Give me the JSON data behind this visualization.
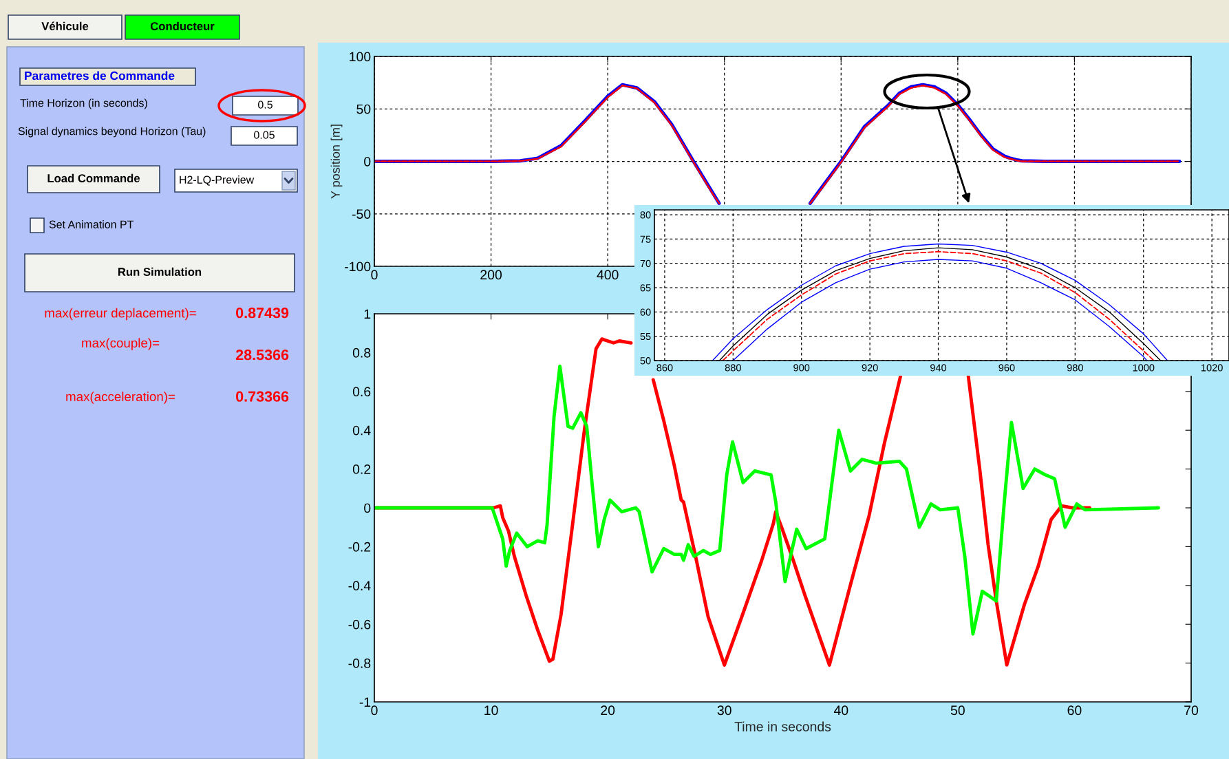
{
  "chart_data": [
    {
      "type": "other",
      "annotations": [
        "Véhicule",
        "Conducteur",
        "Parametres de Commande",
        "Time Horizon (in seconds)",
        "0.5",
        "Signal dynamics beyond Horizon (Tau)",
        "0.05",
        "Load Commande",
        "H2-LQ-Preview",
        "Set Animation PT",
        "Run Simulation",
        "max(erreur deplacement)=",
        "0.87439",
        "max(couple)=",
        "28.5366",
        "max(acceleration)=",
        "0.73366"
      ]
    },
    {
      "type": "line",
      "ylabel": "Y position [m]",
      "xlim": [
        0,
        1400
      ],
      "xticks": [
        0,
        200,
        400,
        {
          "value": 600,
          "label": null
        },
        {
          "value": 800,
          "label": null
        },
        {
          "value": 1000,
          "label": null
        },
        {
          "value": 1200,
          "label": null
        },
        {
          "value": 1400,
          "label": null
        }
      ],
      "ylim": [
        -100,
        100
      ],
      "yticks": [
        -100,
        -50,
        0,
        50,
        100
      ],
      "grid": true,
      "x": [
        0,
        100,
        200,
        250,
        280,
        320,
        360,
        400,
        425,
        450,
        480,
        510,
        547,
        580,
        591,
        673,
        747,
        760,
        800,
        840,
        880,
        900,
        920,
        940,
        960,
        980,
        1000,
        1020,
        1040,
        1060,
        1080,
        1090,
        1100,
        1110,
        1150,
        1250,
        1380
      ],
      "series": [
        {
          "color": "#0000ff",
          "values": [
            0,
            0,
            0,
            0.5,
            3,
            15,
            38,
            62,
            73,
            70,
            57,
            35,
            0,
            -30,
            -40,
            null,
            -40,
            -30,
            0,
            33,
            53,
            65,
            71,
            73,
            71,
            65,
            54,
            40,
            25,
            12,
            5,
            3,
            1.5,
            0.5,
            0,
            0,
            0
          ]
        },
        {
          "color": "#ff0000",
          "line_style": "dashed",
          "values": [
            0,
            0,
            0,
            0.3,
            2.5,
            14,
            37,
            61,
            72.3,
            69.5,
            56,
            34,
            -0.8,
            -31,
            -40,
            null,
            -40,
            -31,
            -0.8,
            32,
            52,
            64,
            70,
            72.3,
            70,
            64,
            53,
            39,
            24,
            11,
            4,
            2.5,
            1,
            0,
            0,
            0,
            0
          ]
        }
      ]
    },
    {
      "type": "line",
      "xlim": [
        857,
        1025
      ],
      "xticks": [
        860,
        880,
        900,
        920,
        940,
        960,
        980,
        1000,
        1020
      ],
      "ylim": [
        50,
        81
      ],
      "yticks": [
        50,
        55,
        60,
        65,
        70,
        75,
        80
      ],
      "grid": true,
      "series": [
        {
          "color": "#0000ff",
          "x": [
            874,
            880,
            890,
            900,
            910,
            920,
            930,
            940,
            950,
            960,
            970,
            980,
            990,
            1000,
            1007
          ],
          "values": [
            50,
            54.5,
            60.5,
            65.5,
            69.5,
            72,
            73.5,
            74,
            73.7,
            72.3,
            70,
            66.5,
            61.5,
            55.5,
            50
          ]
        },
        {
          "color": "#000000",
          "x": [
            876,
            880,
            890,
            900,
            910,
            920,
            930,
            940,
            950,
            960,
            970,
            980,
            990,
            1000,
            1005
          ],
          "values": [
            50,
            53,
            59.5,
            64.5,
            68.5,
            71,
            72.6,
            73.2,
            72.8,
            71.3,
            68.8,
            65,
            60,
            53.5,
            50
          ]
        },
        {
          "color": "#ff0000",
          "line_style": "dashed",
          "x": [
            877,
            880,
            890,
            900,
            910,
            920,
            930,
            940,
            950,
            960,
            970,
            980,
            990,
            1000,
            1003
          ],
          "values": [
            50,
            52,
            58.5,
            63.5,
            67.8,
            70.5,
            72,
            72.4,
            72,
            70.5,
            68,
            64,
            58.5,
            52,
            50
          ]
        },
        {
          "color": "#0000ff",
          "x": [
            880,
            890,
            900,
            910,
            920,
            930,
            940,
            950,
            960,
            970,
            980,
            990,
            1000,
            1001
          ],
          "values": [
            50,
            56.5,
            62,
            66,
            68.8,
            70.3,
            70.8,
            70.5,
            69,
            66,
            62.5,
            57,
            50.8,
            50
          ]
        }
      ]
    },
    {
      "type": "line",
      "xlabel": "Time in seconds",
      "xlim": [
        0,
        70
      ],
      "xticks": [
        0,
        10,
        20,
        30,
        40,
        50,
        60,
        70
      ],
      "ylim": [
        -1,
        1
      ],
      "yticks": [
        -1,
        -0.8,
        -0.6,
        -0.4,
        -0.2,
        0,
        0.2,
        0.4,
        0.6,
        0.8,
        1
      ],
      "grid": false,
      "series": [
        {
          "color": "#ff0000",
          "x": [
            0,
            10.2,
            10.8,
            11,
            11.5,
            12,
            13,
            14,
            15,
            15.3,
            16,
            17,
            18,
            19,
            19.5,
            20,
            20.5,
            21,
            22,
            23,
            23.9,
            24.8,
            25.7,
            26.3,
            26.5,
            27.6,
            28.6,
            30,
            31.5,
            33.2,
            34.2,
            34.4,
            34.9,
            35.9,
            36.9,
            39,
            40.7,
            42.4,
            43.7,
            45.1,
            48,
            50.9,
            51.9,
            52.6,
            53.3,
            54.2,
            55.7,
            56.9,
            58,
            58.9,
            59.8,
            61.3
          ],
          "values": [
            0,
            0,
            0.01,
            -0.05,
            -0.12,
            -0.25,
            -0.45,
            -0.63,
            -0.79,
            -0.78,
            -0.55,
            -0.08,
            0.4,
            0.82,
            0.87,
            0.86,
            0.85,
            0.86,
            0.85,
            null,
            0.66,
            0.45,
            0.22,
            0.04,
            0.03,
            -0.27,
            -0.56,
            -0.81,
            -0.56,
            -0.27,
            -0.08,
            -0.02,
            -0.1,
            -0.27,
            -0.45,
            -0.81,
            -0.42,
            -0.04,
            0.33,
            0.68,
            null,
            0.68,
            0.19,
            -0.19,
            -0.48,
            -0.81,
            -0.5,
            -0.3,
            -0.06,
            0.01,
            0,
            0
          ]
        },
        {
          "color": "#00ff00",
          "x": [
            0,
            10.1,
            11,
            11.3,
            11.6,
            12.2,
            13.1,
            14,
            14.6,
            14.8,
            15.4,
            15.9,
            16.6,
            17,
            17.7,
            18.2,
            18.7,
            19.2,
            19.7,
            20.2,
            21.2,
            22.4,
            22.7,
            23.3,
            23.8,
            24.8,
            25.7,
            26.3,
            26.5,
            26.9,
            27.4,
            28.2,
            28.8,
            29.6,
            30.2,
            30.7,
            31.6,
            32.6,
            34,
            34.4,
            35.2,
            35.7,
            36.2,
            37,
            38.6,
            39.8,
            40.8,
            41.8,
            43,
            45,
            45.6,
            46.7,
            47.7,
            48.5,
            50,
            50.6,
            51.3,
            52.1,
            53.3,
            54,
            54.6,
            55.6,
            56.6,
            57.5,
            58.3,
            59.2,
            60.2,
            60.9,
            67.2
          ],
          "values": [
            0,
            0,
            -0.16,
            -0.3,
            -0.22,
            -0.13,
            -0.2,
            -0.17,
            -0.18,
            -0.09,
            0.47,
            0.73,
            0.42,
            0.41,
            0.49,
            0.42,
            0.1,
            -0.2,
            -0.06,
            0.04,
            -0.02,
            0,
            -0.02,
            -0.19,
            -0.33,
            -0.21,
            -0.24,
            -0.24,
            -0.27,
            -0.19,
            -0.25,
            -0.22,
            -0.24,
            -0.22,
            0.17,
            0.34,
            0.13,
            0.19,
            0.17,
            0.03,
            -0.38,
            -0.24,
            -0.11,
            -0.21,
            -0.16,
            0.4,
            0.19,
            0.25,
            0.23,
            0.24,
            0.2,
            -0.1,
            0.02,
            -0.01,
            0,
            -0.25,
            -0.65,
            -0.43,
            -0.48,
            0.04,
            0.44,
            0.1,
            0.2,
            0.17,
            0.15,
            -0.1,
            0.02,
            -0.01,
            0
          ]
        }
      ]
    }
  ]
}
